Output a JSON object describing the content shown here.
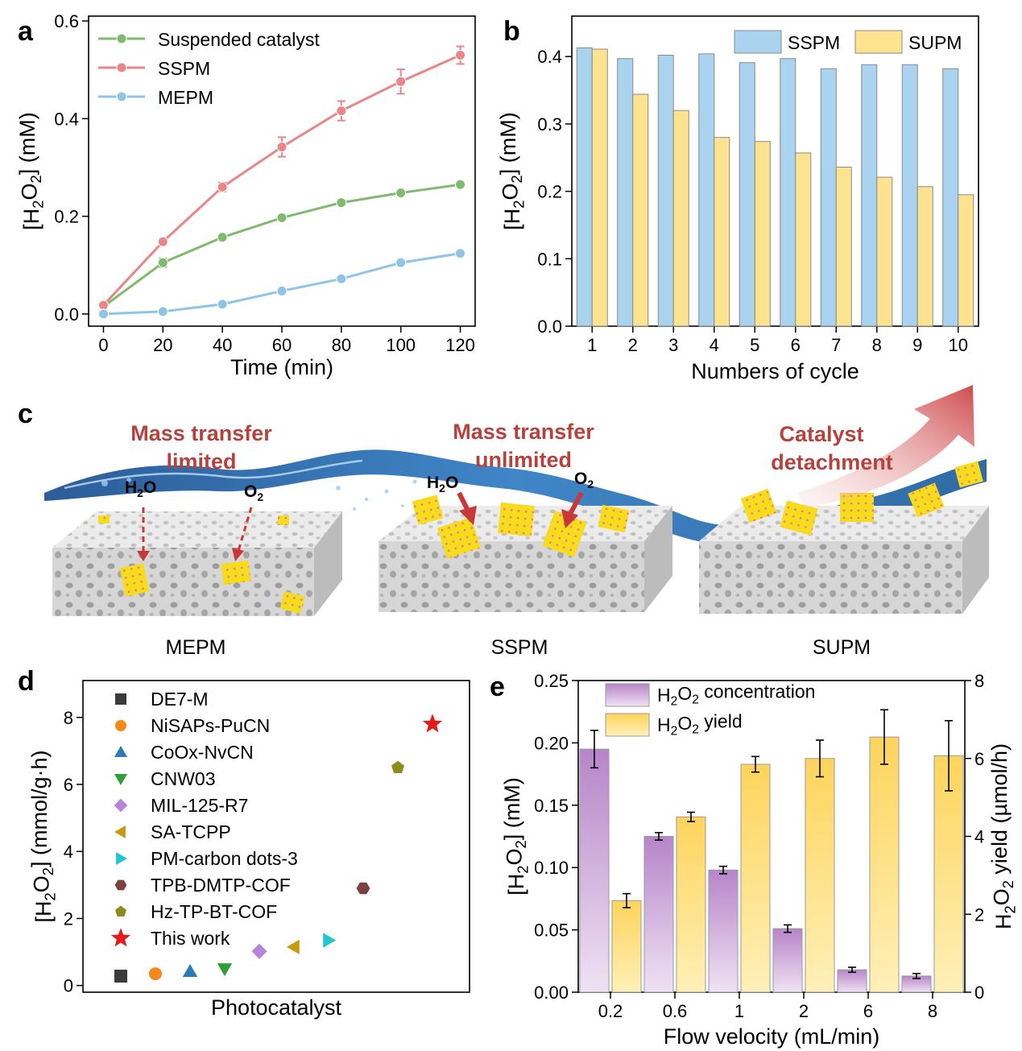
{
  "panel_labels": [
    "a",
    "b",
    "c",
    "d",
    "e"
  ],
  "colors": {
    "suspended": "#7fba6e",
    "sspm_line": "#e8868a",
    "mepm_line": "#8ec5e6",
    "bar_blue": "#a9d3ee",
    "bar_yellow": "#fde38f",
    "flow_purple": "#c39ad0",
    "flow_yellow": "#fdd867",
    "water": "#2a73b8",
    "catalyst": "#f7dc1c",
    "arrow_red": "#c8383a"
  },
  "chart_data": [
    {
      "id": "a",
      "type": "line",
      "x": [
        0,
        20,
        40,
        60,
        80,
        100,
        120
      ],
      "xlabel": "Time (min)",
      "ylabel_parts": [
        "[H",
        "2",
        "O",
        "2",
        "] (mM)"
      ],
      "xlim": [
        -5,
        125
      ],
      "ylim": [
        -0.025,
        0.61
      ],
      "xticks": [
        0,
        20,
        40,
        60,
        80,
        100,
        120
      ],
      "yticks": [
        "0.0",
        "0.2",
        "0.4",
        "0.6"
      ],
      "series": [
        {
          "name": "Suspended catalyst",
          "values": [
            0.015,
            0.105,
            0.157,
            0.197,
            0.228,
            0.248,
            0.265
          ],
          "errors": [
            0.003,
            0.009,
            0.006,
            0.005,
            0.005,
            0.005,
            0.005
          ]
        },
        {
          "name": "SSPM",
          "values": [
            0.018,
            0.148,
            0.26,
            0.342,
            0.416,
            0.476,
            0.53
          ],
          "errors": [
            0.003,
            0.006,
            0.009,
            0.02,
            0.02,
            0.025,
            0.018
          ]
        },
        {
          "name": "MEPM",
          "values": [
            0.0,
            0.005,
            0.02,
            0.047,
            0.072,
            0.105,
            0.124
          ],
          "errors": [
            0.002,
            0.003,
            0.004,
            0.004,
            0.005,
            0.004,
            0.004
          ]
        }
      ]
    },
    {
      "id": "b",
      "type": "bar",
      "categories": [
        "1",
        "2",
        "3",
        "4",
        "5",
        "6",
        "7",
        "8",
        "9",
        "10"
      ],
      "xlabel": "Numbers of cycle",
      "ylabel_parts": [
        "[H",
        "2",
        "O",
        "2",
        "] (mM)"
      ],
      "ylim": [
        0,
        0.46
      ],
      "yticks": [
        "0.0",
        "0.1",
        "0.2",
        "0.3",
        "0.4"
      ],
      "series": [
        {
          "name": "SSPM",
          "values": [
            0.413,
            0.397,
            0.402,
            0.404,
            0.391,
            0.397,
            0.382,
            0.388,
            0.388,
            0.382
          ]
        },
        {
          "name": "SUPM",
          "values": [
            0.411,
            0.344,
            0.32,
            0.28,
            0.274,
            0.257,
            0.236,
            0.221,
            0.207,
            0.195
          ]
        }
      ]
    },
    {
      "id": "d",
      "type": "scatter",
      "xlabel": "Photocatalyst",
      "ylabel_parts": [
        "[H",
        "2",
        "O",
        "2",
        "] (mmol/g·h)"
      ],
      "ylim": [
        -0.2,
        9.1
      ],
      "yticks": [
        "0",
        "2",
        "4",
        "6",
        "8"
      ],
      "series": [
        {
          "name": "DE7-M",
          "x": 1,
          "value": 0.28,
          "marker": "square",
          "color": "#3b3b3b"
        },
        {
          "name": "NiSAPs-PuCN",
          "x": 2,
          "value": 0.35,
          "marker": "circle",
          "color": "#f2891a"
        },
        {
          "name": "CoOx-NvCN",
          "x": 3,
          "value": 0.42,
          "marker": "triangle-up",
          "color": "#2e7bb8"
        },
        {
          "name": "CNW03",
          "x": 4,
          "value": 0.5,
          "marker": "triangle-down",
          "color": "#2f9e37"
        },
        {
          "name": "MIL-125-R7",
          "x": 5,
          "value": 1.02,
          "marker": "diamond",
          "color": "#b784dc"
        },
        {
          "name": "SA-TCPP",
          "x": 6,
          "value": 1.15,
          "marker": "triangle-left",
          "color": "#c79a12"
        },
        {
          "name": "PM-carbon dots-3",
          "x": 7,
          "value": 1.35,
          "marker": "triangle-right",
          "color": "#22c6d1"
        },
        {
          "name": "TPB-DMTP-COF",
          "x": 8,
          "value": 2.9,
          "marker": "hexagon",
          "color": "#7a4141"
        },
        {
          "name": "Hz-TP-BT-COF",
          "x": 9,
          "value": 6.5,
          "marker": "pentagon",
          "color": "#8c8c1c"
        },
        {
          "name": "This work",
          "x": 10,
          "value": 7.8,
          "marker": "star",
          "color": "#e41a1c"
        }
      ]
    },
    {
      "id": "e",
      "type": "bar",
      "categories": [
        "0.2",
        "0.6",
        "1",
        "2",
        "6",
        "8"
      ],
      "xlabel": "Flow velocity (mL/min)",
      "ylabel_parts": [
        "[H",
        "2",
        "O",
        "2",
        "] (mM)"
      ],
      "ylabel_right_parts": [
        "H",
        "2",
        "O",
        "2",
        " yield (µmol/h)"
      ],
      "ylim": [
        0,
        0.25
      ],
      "ylim_right": [
        0,
        8
      ],
      "yticks": [
        "0.00",
        "0.05",
        "0.10",
        "0.15",
        "0.20",
        "0.25"
      ],
      "yticks_right": [
        "0",
        "2",
        "4",
        "6",
        "8"
      ],
      "series": [
        {
          "name_parts": [
            "H",
            "2",
            "O",
            "2",
            " concentration"
          ],
          "axis": "left",
          "values": [
            0.195,
            0.125,
            0.098,
            0.051,
            0.018,
            0.013
          ],
          "errors": [
            0.015,
            0.003,
            0.003,
            0.003,
            0.002,
            0.002
          ]
        },
        {
          "name_parts": [
            "H",
            "2",
            "O",
            "2",
            " yield"
          ],
          "axis": "right",
          "values": [
            2.35,
            4.5,
            5.85,
            6.0,
            6.55,
            6.07
          ],
          "errors": [
            0.18,
            0.12,
            0.2,
            0.47,
            0.7,
            0.9
          ]
        }
      ]
    }
  ],
  "panel_c": {
    "labels": {
      "mepm_top": "Mass transfer",
      "mepm_bottom": "limited",
      "sspm_top": "Mass transfer",
      "sspm_bottom": "unlimited",
      "supm_top": "Catalyst",
      "supm_bottom": "detachment",
      "h2o": "H",
      "o2": "O",
      "sub2": "2"
    },
    "captions": [
      "MEPM",
      "SSPM",
      "SUPM"
    ]
  }
}
